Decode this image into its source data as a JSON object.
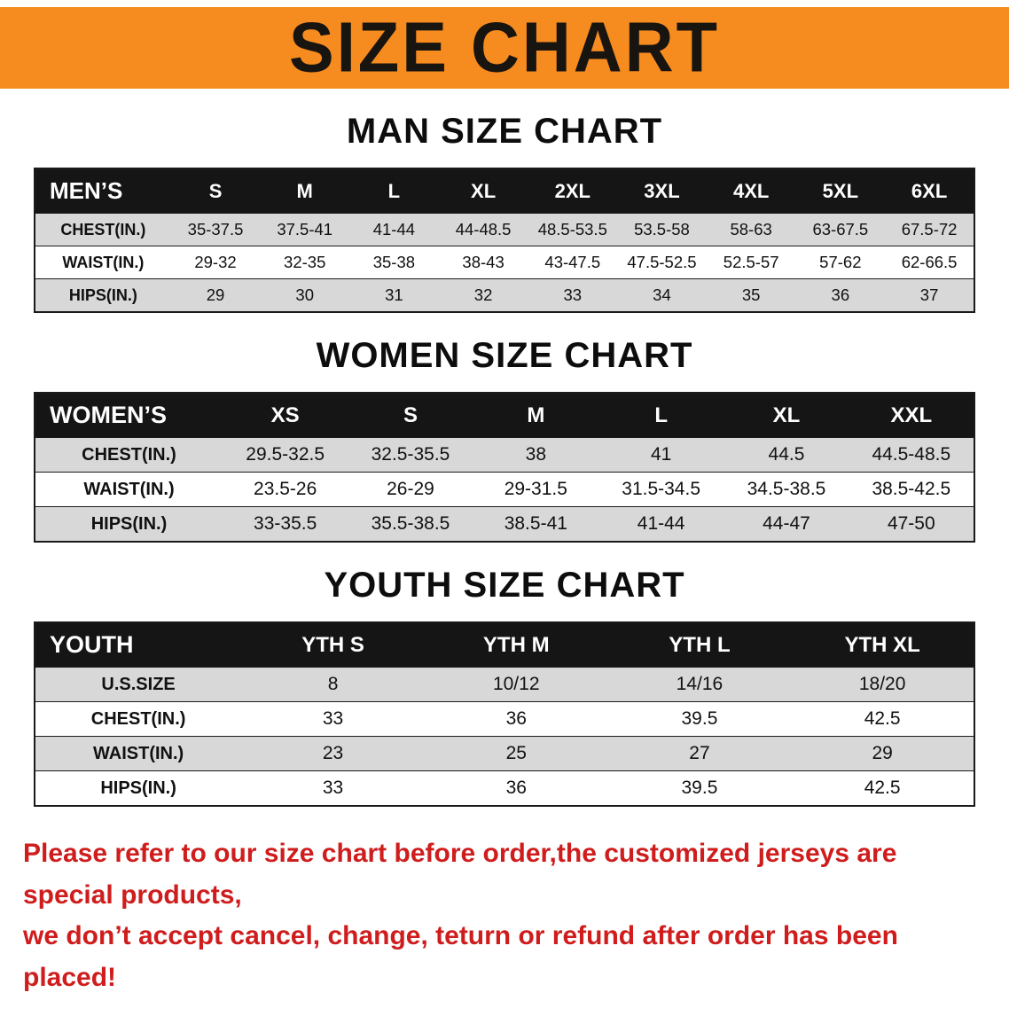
{
  "banner": {
    "title": "SIZE CHART"
  },
  "sections": [
    {
      "id": "men",
      "heading": "MAN SIZE CHART",
      "table": {
        "header": [
          "MEN’S",
          "S",
          "M",
          "L",
          "XL",
          "2XL",
          "3XL",
          "4XL",
          "5XL",
          "6XL"
        ],
        "rows": [
          [
            "CHEST(IN.)",
            "35-37.5",
            "37.5-41",
            "41-44",
            "44-48.5",
            "48.5-53.5",
            "53.5-58",
            "58-63",
            "63-67.5",
            "67.5-72"
          ],
          [
            "WAIST(IN.)",
            "29-32",
            "32-35",
            "35-38",
            "38-43",
            "43-47.5",
            "47.5-52.5",
            "52.5-57",
            "57-62",
            "62-66.5"
          ],
          [
            "HIPS(IN.)",
            "29",
            "30",
            "31",
            "32",
            "33",
            "34",
            "35",
            "36",
            "37"
          ]
        ]
      }
    },
    {
      "id": "women",
      "heading": "WOMEN SIZE CHART",
      "table": {
        "header": [
          "WOMEN’S",
          "XS",
          "S",
          "M",
          "L",
          "XL",
          "XXL"
        ],
        "rows": [
          [
            "CHEST(IN.)",
            "29.5-32.5",
            "32.5-35.5",
            "38",
            "41",
            "44.5",
            "44.5-48.5"
          ],
          [
            "WAIST(IN.)",
            "23.5-26",
            "26-29",
            "29-31.5",
            "31.5-34.5",
            "34.5-38.5",
            "38.5-42.5"
          ],
          [
            "HIPS(IN.)",
            "33-35.5",
            "35.5-38.5",
            "38.5-41",
            "41-44",
            "44-47",
            "47-50"
          ]
        ]
      }
    },
    {
      "id": "youth",
      "heading": "YOUTH SIZE CHART",
      "table": {
        "header": [
          "YOUTH",
          "YTH S",
          "YTH M",
          "YTH L",
          "YTH XL"
        ],
        "rows": [
          [
            "U.S.SIZE",
            "8",
            "10/12",
            "14/16",
            "18/20"
          ],
          [
            "CHEST(IN.)",
            "33",
            "36",
            "39.5",
            "42.5"
          ],
          [
            "WAIST(IN.)",
            "23",
            "25",
            "27",
            "29"
          ],
          [
            "HIPS(IN.)",
            "33",
            "36",
            "39.5",
            "42.5"
          ]
        ]
      }
    }
  ],
  "footer": {
    "line1": "Please refer to our size chart before order,the customized jerseys are special products,",
    "line2": "we don’t accept cancel, change, teturn or refund after order has been placed!"
  },
  "colors": {
    "banner_bg": "#f68b1f",
    "header_bg": "#151515",
    "stripe_bg": "#d8d8d8",
    "footer_text": "#cf1d1d"
  }
}
